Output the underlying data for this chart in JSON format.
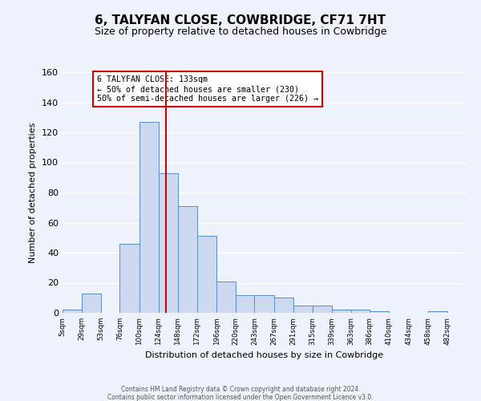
{
  "title": "6, TALYFAN CLOSE, COWBRIDGE, CF71 7HT",
  "subtitle": "Size of property relative to detached houses in Cowbridge",
  "xlabel": "Distribution of detached houses by size in Cowbridge",
  "ylabel": "Number of detached properties",
  "bin_labels": [
    "5sqm",
    "29sqm",
    "53sqm",
    "76sqm",
    "100sqm",
    "124sqm",
    "148sqm",
    "172sqm",
    "196sqm",
    "220sqm",
    "243sqm",
    "267sqm",
    "291sqm",
    "315sqm",
    "339sqm",
    "363sqm",
    "386sqm",
    "410sqm",
    "434sqm",
    "458sqm",
    "482sqm"
  ],
  "bin_edges": [
    5,
    29,
    53,
    76,
    100,
    124,
    148,
    172,
    196,
    220,
    243,
    267,
    291,
    315,
    339,
    363,
    386,
    410,
    434,
    458,
    482
  ],
  "bar_heights": [
    2,
    13,
    0,
    46,
    127,
    93,
    71,
    51,
    21,
    12,
    12,
    10,
    5,
    5,
    2,
    2,
    1,
    0,
    0,
    1
  ],
  "bar_color": "#ccd9f0",
  "bar_edge_color": "#5b8fcf",
  "vline_x": 133,
  "vline_color": "#cc0000",
  "annotation_title": "6 TALYFAN CLOSE: 133sqm",
  "annotation_line1": "← 50% of detached houses are smaller (230)",
  "annotation_line2": "50% of semi-detached houses are larger (226) →",
  "annotation_box_color": "#ffffff",
  "annotation_box_edge": "#cc0000",
  "ylim": [
    0,
    160
  ],
  "yticks": [
    0,
    20,
    40,
    60,
    80,
    100,
    120,
    140,
    160
  ],
  "background_color": "#eef2fb",
  "grid_color": "#ffffff",
  "footer1": "Contains HM Land Registry data © Crown copyright and database right 2024.",
  "footer2": "Contains public sector information licensed under the Open Government Licence v3.0."
}
